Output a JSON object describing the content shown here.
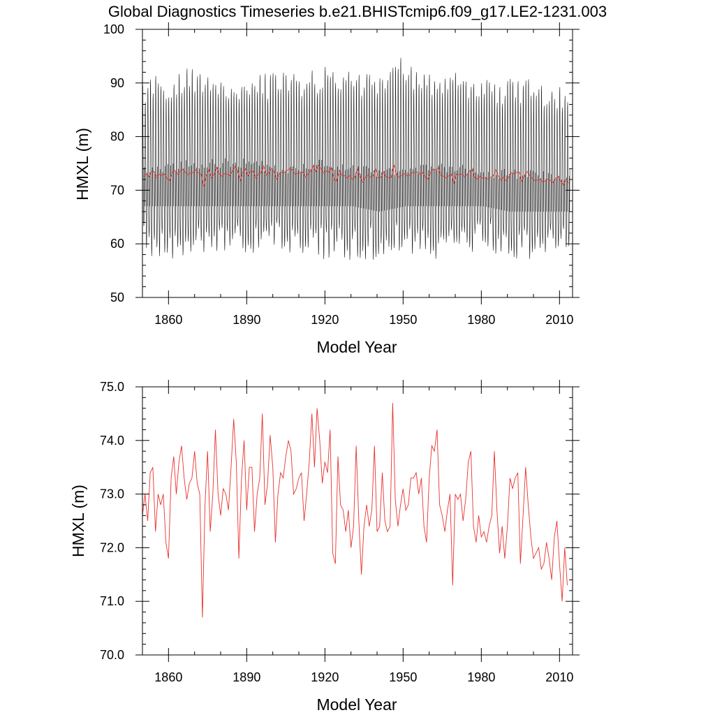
{
  "title": "Global Diagnostics Timeseries b.e21.BHISTcmip6.f09_g17.LE2-1231.003",
  "colors": {
    "monthly": "#1a1a1a",
    "annual": "#e8322e",
    "axis": "#000000"
  },
  "chart_data": [
    {
      "type": "line",
      "xlabel": "Model Year",
      "ylabel": "HMXL (m)",
      "xlim": [
        1850,
        2015
      ],
      "ylim": [
        50,
        100
      ],
      "x_ticks": [
        1860,
        1890,
        1920,
        1950,
        1980,
        2010
      ],
      "y_ticks": [
        50,
        60,
        70,
        80,
        90,
        100
      ],
      "y_tick_labels": [
        "50",
        "60",
        "70",
        "80",
        "90",
        "100"
      ],
      "grid": false,
      "monthly_envelope": {
        "x": [
          1850,
          1860,
          1870,
          1880,
          1890,
          1900,
          1910,
          1920,
          1930,
          1940,
          1950,
          1960,
          1970,
          1980,
          1990,
          2000,
          2010,
          2015
        ],
        "max": [
          91,
          92,
          93,
          92,
          92,
          92,
          92,
          93,
          92,
          92,
          95,
          92,
          92,
          91,
          91,
          91,
          90,
          89
        ],
        "min": [
          58,
          57,
          57,
          58,
          58,
          58,
          58,
          57,
          57,
          57,
          58,
          57,
          58,
          58,
          57,
          57,
          57,
          58
        ],
        "upper_core": [
          75,
          75,
          76,
          76,
          76,
          75,
          75,
          76,
          75,
          74,
          75,
          75,
          75,
          74,
          74,
          74,
          73,
          73
        ],
        "lower_core": [
          65,
          65,
          65,
          65,
          65,
          65,
          65,
          65,
          65,
          64,
          65,
          65,
          65,
          65,
          64,
          64,
          64,
          64
        ]
      },
      "series": [
        {
          "values_ref": "annual"
        }
      ]
    },
    {
      "type": "line",
      "xlabel": "Model Year",
      "ylabel": "HMXL (m)",
      "xlim": [
        1850,
        2015
      ],
      "ylim": [
        70,
        75
      ],
      "x_ticks": [
        1860,
        1890,
        1920,
        1950,
        1980,
        2010
      ],
      "y_ticks": [
        70,
        71,
        72,
        73,
        74,
        75
      ],
      "y_tick_labels": [
        "70.0",
        "71.0",
        "72.0",
        "73.0",
        "74.0",
        "75.0"
      ],
      "grid": false,
      "annual": {
        "x_start": 1850,
        "values": [
          72.6,
          73.0,
          72.5,
          73.4,
          73.5,
          72.3,
          73.0,
          72.8,
          73.0,
          72.1,
          71.8,
          73.3,
          73.7,
          73.0,
          73.6,
          73.9,
          73.3,
          72.9,
          73.2,
          73.3,
          73.8,
          73.2,
          73.0,
          70.7,
          72.8,
          73.8,
          72.3,
          73.0,
          74.2,
          73.0,
          72.6,
          73.1,
          73.0,
          72.7,
          73.5,
          74.4,
          73.6,
          71.8,
          73.3,
          74.0,
          72.7,
          73.5,
          73.5,
          72.3,
          73.0,
          73.3,
          74.5,
          72.8,
          73.2,
          74.1,
          73.5,
          72.1,
          73.0,
          73.4,
          73.3,
          73.7,
          74.0,
          73.8,
          73.0,
          73.1,
          73.3,
          73.4,
          72.5,
          73.0,
          73.6,
          74.5,
          73.5,
          74.6,
          74.0,
          73.2,
          73.6,
          73.4,
          74.2,
          71.9,
          71.7,
          73.7,
          72.8,
          72.7,
          72.3,
          72.7,
          72.0,
          72.4,
          73.9,
          72.5,
          71.5,
          72.4,
          72.8,
          72.4,
          72.7,
          73.9,
          72.3,
          72.4,
          73.4,
          72.5,
          72.3,
          72.4,
          74.7,
          72.9,
          72.4,
          72.8,
          73.1,
          72.7,
          72.8,
          73.3,
          73.3,
          73.4,
          73.0,
          73.3,
          72.4,
          72.1,
          73.3,
          73.9,
          73.8,
          74.2,
          72.8,
          72.6,
          72.3,
          72.7,
          73.0,
          71.3,
          73.0,
          72.9,
          73.0,
          72.5,
          72.9,
          73.6,
          73.8,
          72.4,
          72.1,
          72.6,
          72.2,
          72.3,
          72.1,
          72.4,
          72.6,
          73.8,
          72.7,
          71.9,
          72.4,
          71.8,
          72.4,
          73.3,
          73.1,
          73.3,
          73.4,
          71.7,
          72.6,
          73.5,
          72.8,
          72.2,
          71.8,
          71.9,
          72.0,
          71.6,
          71.7,
          72.1,
          71.8,
          71.4,
          72.2,
          72.5,
          71.7,
          71.0,
          72.0,
          71.3
        ]
      }
    }
  ]
}
